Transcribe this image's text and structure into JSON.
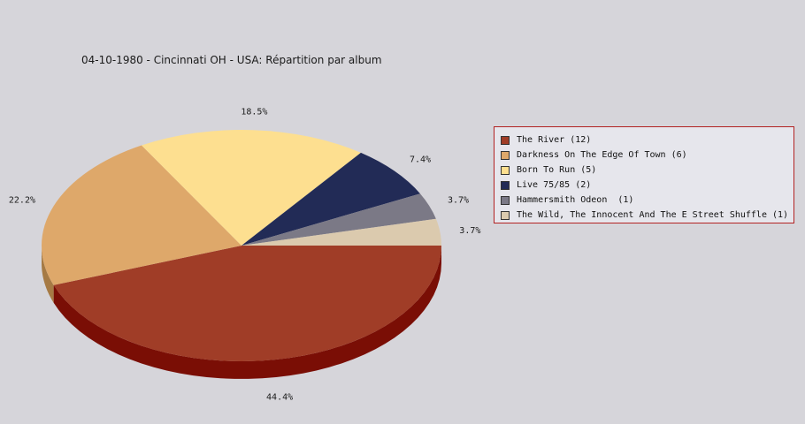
{
  "chart_data": {
    "type": "pie",
    "title": "04-10-1980 - Cincinnati OH - USA:  Répartition par album",
    "legend_position": "right",
    "slices": [
      {
        "label": "The River (12)",
        "value": 12,
        "percent_label": "44.4%",
        "color": "#a03d27",
        "side_color": "#7a0e05"
      },
      {
        "label": "Darkness On The Edge Of Town (6)",
        "value": 6,
        "percent_label": "22.2%",
        "color": "#dea86a",
        "side_color": "#a67a44"
      },
      {
        "label": "Born To Run (5)",
        "value": 5,
        "percent_label": "18.5%",
        "color": "#fddf90",
        "side_color": "#c4aa60"
      },
      {
        "label": "Live 75/85 (2)",
        "value": 2,
        "percent_label": "7.4%",
        "color": "#222b56",
        "side_color": "#10163a"
      },
      {
        "label": "Hammersmith Odeon  (1)",
        "value": 1,
        "percent_label": "3.7%",
        "color": "#7b7986",
        "side_color": "#55535e"
      },
      {
        "label": "The Wild, The Innocent And The E Street Shuffle (1)",
        "value": 1,
        "percent_label": "3.7%",
        "color": "#dbcaae",
        "side_color": "#a9987c"
      }
    ]
  }
}
